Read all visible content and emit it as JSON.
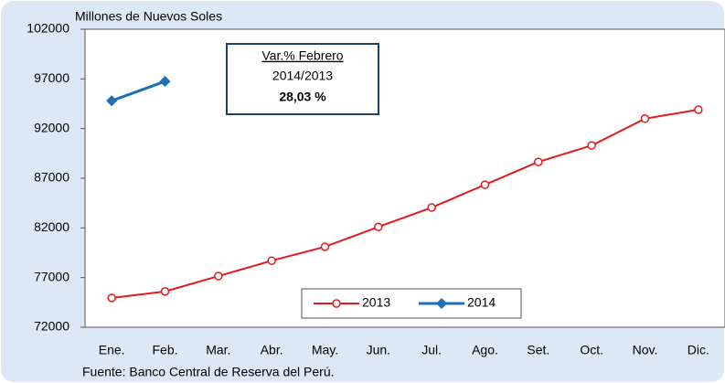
{
  "chart_data": {
    "type": "line",
    "y_axis_label": "Millones de Nuevos Soles",
    "source": "Fuente: Banco Central de Reserva del Perú.",
    "annotation": {
      "title": "Var.% Febrero",
      "period": "2014/2013",
      "value": "28,03 %"
    },
    "categories": [
      "Ene.",
      "Feb.",
      "Mar.",
      "Abr.",
      "May.",
      "Jun.",
      "Jul.",
      "Ago.",
      "Set.",
      "Oct.",
      "Nov.",
      "Dic."
    ],
    "series": [
      {
        "name": "2013",
        "color": "#e31a1c",
        "marker": "circle",
        "values": [
          74950,
          75600,
          77150,
          78700,
          80100,
          82100,
          84050,
          86350,
          88650,
          90300,
          93000,
          93900
        ]
      },
      {
        "name": "2014",
        "color": "#1f6fb5",
        "marker": "diamond",
        "values": [
          94800,
          96750,
          null,
          null,
          null,
          null,
          null,
          null,
          null,
          null,
          null,
          null
        ]
      }
    ],
    "ylim": [
      72000,
      102000
    ],
    "yticks": [
      72000,
      77000,
      82000,
      87000,
      92000,
      97000,
      102000
    ]
  }
}
